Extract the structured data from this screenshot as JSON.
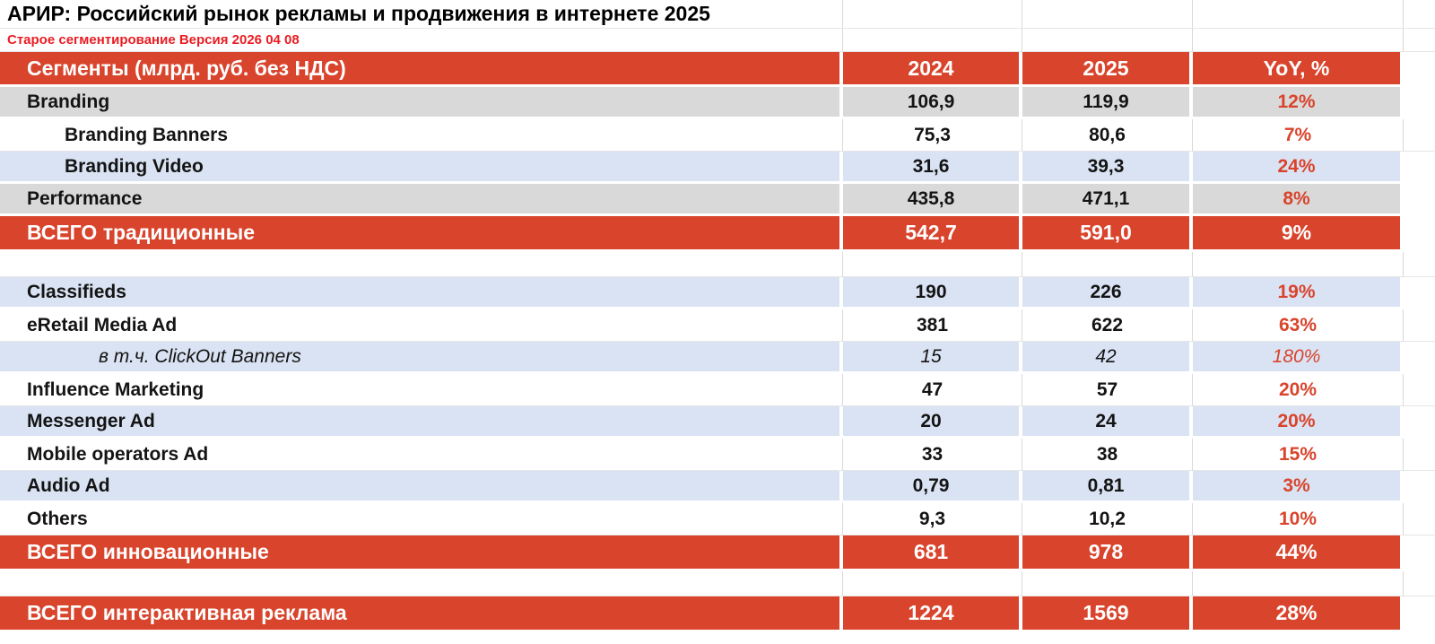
{
  "title": "АРИР: Российский рынок рекламы и продвижения в интернете 2025",
  "version_note": "Старое сегментирование Версия 2026 04 08",
  "chart_data": {
    "type": "table",
    "title": "АРИР: Российский рынок рекламы и продвижения в интернете 2025",
    "subtitle": "Старое сегментирование Версия 2026 04 08",
    "columns": [
      "Сегменты (млрд. руб. без НДС)",
      "2024",
      "2025",
      "YoY, %"
    ],
    "rows": [
      {
        "label": "Branding",
        "v2024": "106,9",
        "v2025": "119,9",
        "yoy": "12%",
        "band": "gray",
        "indent": 0
      },
      {
        "label": "Branding Banners",
        "v2024": "75,3",
        "v2025": "80,6",
        "yoy": "7%",
        "band": "white",
        "indent": 1
      },
      {
        "label": "Branding Video",
        "v2024": "31,6",
        "v2025": "39,3",
        "yoy": "24%",
        "band": "blue",
        "indent": 1
      },
      {
        "label": "Performance",
        "v2024": "435,8",
        "v2025": "471,1",
        "yoy": "8%",
        "band": "gray",
        "indent": 0
      },
      {
        "label": "ВСЕГО традиционные",
        "v2024": "542,7",
        "v2025": "591,0",
        "yoy": "9%",
        "band": "total",
        "indent": 0
      },
      {
        "band": "spacer"
      },
      {
        "label": "Classifieds",
        "v2024": "190",
        "v2025": "226",
        "yoy": "19%",
        "band": "blue",
        "indent": 0
      },
      {
        "label": "eRetail Media Ad",
        "v2024": "381",
        "v2025": "622",
        "yoy": "63%",
        "band": "white",
        "indent": 0
      },
      {
        "label": "в т.ч. ClickOut Banners",
        "v2024": "15",
        "v2025": "42",
        "yoy": "180%",
        "band": "blue",
        "indent": 2,
        "italic": true
      },
      {
        "label": "Influence Marketing",
        "v2024": "47",
        "v2025": "57",
        "yoy": "20%",
        "band": "white",
        "indent": 0
      },
      {
        "label": "Messenger Ad",
        "v2024": "20",
        "v2025": "24",
        "yoy": "20%",
        "band": "blue",
        "indent": 0
      },
      {
        "label": "Mobile operators Ad",
        "v2024": "33",
        "v2025": "38",
        "yoy": "15%",
        "band": "white",
        "indent": 0
      },
      {
        "label": "Audio Ad",
        "v2024": "0,79",
        "v2025": "0,81",
        "yoy": "3%",
        "band": "blue",
        "indent": 0
      },
      {
        "label": "Others",
        "v2024": "9,3",
        "v2025": "10,2",
        "yoy": "10%",
        "band": "white",
        "indent": 0
      },
      {
        "label": "ВСЕГО инновационные",
        "v2024": "681",
        "v2025": "978",
        "yoy": "44%",
        "band": "total",
        "indent": 0
      },
      {
        "band": "spacer"
      },
      {
        "label": "ВСЕГО интерактивная реклама",
        "v2024": "1224",
        "v2025": "1569",
        "yoy": "28%",
        "band": "total",
        "indent": 0
      }
    ]
  },
  "colors": {
    "accent_red": "#d9442c",
    "band_gray": "#d9d9d9",
    "band_blue": "#dae3f3",
    "note_red": "#ea1c22",
    "gridline": "#d9d9d9"
  }
}
